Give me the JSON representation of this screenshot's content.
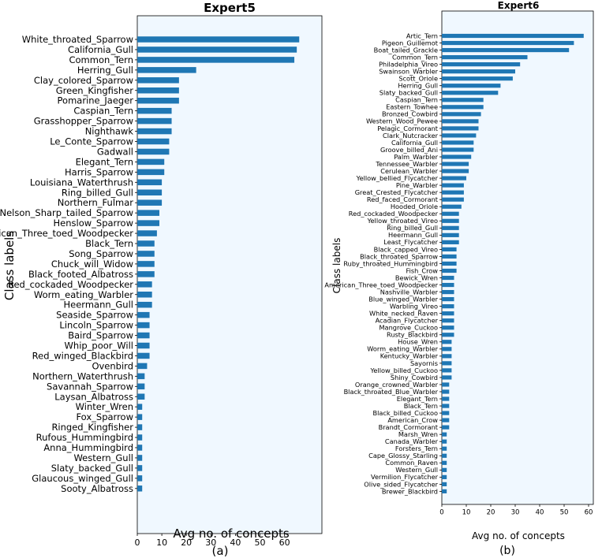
{
  "chart_data": [
    {
      "type": "bar",
      "orientation": "horizontal",
      "title": "Expert5",
      "xlabel": "Avg no. of concepts",
      "ylabel": "Class labels",
      "panel_label": "(a)",
      "xlim": [
        0,
        68
      ],
      "xticks": [
        0,
        10,
        20,
        30,
        40,
        50,
        60
      ],
      "categories": [
        "White_throated_Sparrow",
        "California_Gull",
        "Common_Tern",
        "Herring_Gull",
        "Clay_colored_Sparrow",
        "Green_Kingfisher",
        "Pomarine_Jaeger",
        "Caspian_Tern",
        "Grasshopper_Sparrow",
        "Nighthawk",
        "Le_Conte_Sparrow",
        "Gadwall",
        "Elegant_Tern",
        "Harris_Sparrow",
        "Louisiana_Waterthrush",
        "Ring_billed_Gull",
        "Northern_Fulmar",
        "Nelson_Sharp_tailed_Sparrow",
        "Henslow_Sparrow",
        "American_Three_toed_Woodpecker",
        "Black_Tern",
        "Song_Sparrow",
        "Chuck_will_Widow",
        "Black_footed_Albatross",
        "Red_cockaded_Woodpecker",
        "Worm_eating_Warbler",
        "Heermann_Gull",
        "Seaside_Sparrow",
        "Lincoln_Sparrow",
        "Baird_Sparrow",
        "Whip_poor_Will",
        "Red_winged_Blackbird",
        "Ovenbird",
        "Northern_Waterthrush",
        "Savannah_Sparrow",
        "Laysan_Albatross",
        "Winter_Wren",
        "Fox_Sparrow",
        "Ringed_Kingfisher",
        "Rufous_Hummingbird",
        "Anna_Hummingbird",
        "Western_Gull",
        "Slaty_backed_Gull",
        "Glaucous_winged_Gull",
        "Sooty_Albatross"
      ],
      "values": [
        66,
        65,
        64,
        24,
        17,
        17,
        17,
        14,
        14,
        14,
        13,
        13,
        11,
        11,
        10,
        10,
        10,
        9,
        9,
        8,
        7,
        7,
        7,
        7,
        6,
        6,
        6,
        5,
        5,
        5,
        5,
        5,
        4,
        3,
        3,
        3,
        2,
        2,
        2,
        2,
        2,
        2,
        2,
        2,
        2
      ]
    },
    {
      "type": "bar",
      "orientation": "horizontal",
      "title": "Expert6",
      "xlabel": "Avg no. of concepts",
      "ylabel": "Class labels",
      "panel_label": "(b)",
      "xlim": [
        0,
        60
      ],
      "xticks": [
        0,
        10,
        20,
        30,
        40,
        50,
        60
      ],
      "categories": [
        "Artic_Tern",
        "Pigeon_Guillemot",
        "Boat_tailed_Grackle",
        "Common_Tern",
        "Philadelphia_Vireo",
        "Swainson_Warbler",
        "Scott_Oriole",
        "Herring_Gull",
        "Slaty_backed_Gull",
        "Caspian_Tern",
        "Eastern_Towhee",
        "Bronzed_Cowbird",
        "Western_Wood_Pewee",
        "Pelagic_Cormorant",
        "Clark_Nutcracker",
        "California_Gull",
        "Groove_billed_Ani",
        "Palm_Warbler",
        "Tennessee_Warbler",
        "Cerulean_Warbler",
        "Yellow_bellied_Flycatcher",
        "Pine_Warbler",
        "Great_Crested_Flycatcher",
        "Red_faced_Cormorant",
        "Hooded_Oriole",
        "Red_cockaded_Woodpecker",
        "Yellow_throated_Vireo",
        "Ring_billed_Gull",
        "Heermann_Gull",
        "Least_Flycatcher",
        "Black_capped_Vireo",
        "Black_throated_Sparrow",
        "Ruby_throated_Hummingbird",
        "Fish_Crow",
        "Bewick_Wren",
        "American_Three_toed_Woodpecker",
        "Nashville_Warbler",
        "Blue_winged_Warbler",
        "Warbling_Vireo",
        "White_necked_Raven",
        "Acadian_Flycatcher",
        "Mangrove_Cuckoo",
        "Rusty_Blackbird",
        "House_Wren",
        "Worm_eating_Warbler",
        "Kentucky_Warbler",
        "Sayornis",
        "Yellow_billed_Cuckoo",
        "Shiny_Cowbird",
        "Orange_crowned_Warbler",
        "Black_throated_Blue_Warbler",
        "Elegant_Tern",
        "Black_Tern",
        "Black_billed_Cuckoo",
        "American_Crow",
        "Brandt_Cormorant",
        "Marsh_Wren",
        "Canada_Warbler",
        "Forsters_Tern",
        "Cape_Glossy_Starling",
        "Common_Raven",
        "Western_Gull",
        "Vermilion_Flycatcher",
        "Olive_sided_Flycatcher",
        "Brewer_Blackbird"
      ],
      "values": [
        58,
        54,
        52,
        35,
        32,
        30,
        29,
        24,
        23,
        17,
        17,
        16,
        15,
        15,
        14,
        13,
        13,
        12,
        11,
        11,
        10,
        9,
        9,
        9,
        8,
        7,
        7,
        7,
        7,
        7,
        6,
        6,
        6,
        6,
        5,
        5,
        5,
        5,
        5,
        5,
        5,
        5,
        5,
        4,
        4,
        4,
        4,
        4,
        4,
        3,
        3,
        3,
        3,
        3,
        3,
        3,
        2,
        2,
        2,
        2,
        2,
        2,
        2,
        2,
        2
      ]
    }
  ]
}
